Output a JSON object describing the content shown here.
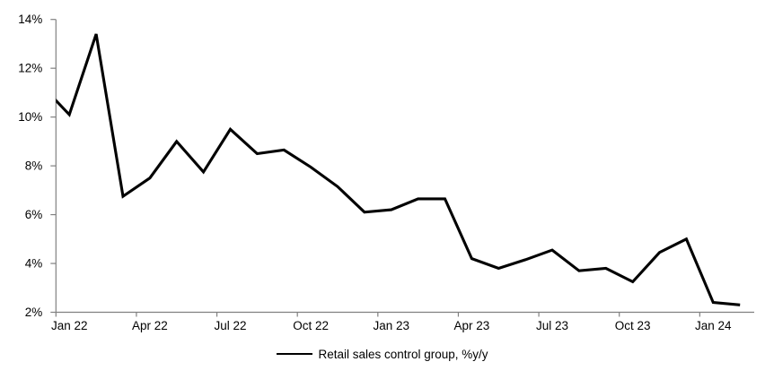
{
  "chart_data": {
    "type": "line",
    "title": "",
    "xlabel": "",
    "ylabel": "",
    "grid": false,
    "legend_position": "bottom-center",
    "ylim": [
      2,
      14
    ],
    "y_tick_values": [
      14,
      12,
      10,
      8,
      6,
      4,
      2
    ],
    "y_tick_labels": [
      "14%",
      "12%",
      "10%",
      "8%",
      "6%",
      "4%",
      "2%"
    ],
    "x_tick_labels": [
      "Jan 22",
      "Apr 22",
      "Jul 22",
      "Oct 22",
      "Jan 23",
      "Apr 23",
      "Jul 23",
      "Oct 23",
      "Jan 24"
    ],
    "x": [
      "Dec 21",
      "Jan 22",
      "Feb 22",
      "Mar 22",
      "Apr 22",
      "May 22",
      "Jun 22",
      "Jul 22",
      "Aug 22",
      "Sep 22",
      "Oct 22",
      "Nov 22",
      "Dec 22",
      "Jan 23",
      "Feb 23",
      "Mar 23",
      "Apr 23",
      "May 23",
      "Jun 23",
      "Jul 23",
      "Aug 23",
      "Sep 23",
      "Oct 23",
      "Nov 23",
      "Dec 23",
      "Jan 24",
      "Feb 24"
    ],
    "series": [
      {
        "name": "Retail sales control group, %y/y",
        "color": "#000000",
        "values": [
          11.25,
          10.1,
          13.4,
          6.75,
          7.5,
          9.0,
          7.75,
          9.5,
          8.5,
          8.65,
          7.95,
          7.15,
          6.1,
          6.2,
          6.65,
          6.65,
          4.2,
          3.8,
          4.15,
          4.55,
          3.7,
          3.8,
          3.25,
          4.45,
          5.0,
          2.4,
          2.3
        ]
      }
    ],
    "clipped_leading_point": "Dec 21 segment enters at left axis edge"
  },
  "legend": {
    "label": "Retail sales control group, %y/y"
  },
  "colors": {
    "line": "#000000",
    "axis": "#808080",
    "text": "#000000",
    "background": "#ffffff"
  }
}
